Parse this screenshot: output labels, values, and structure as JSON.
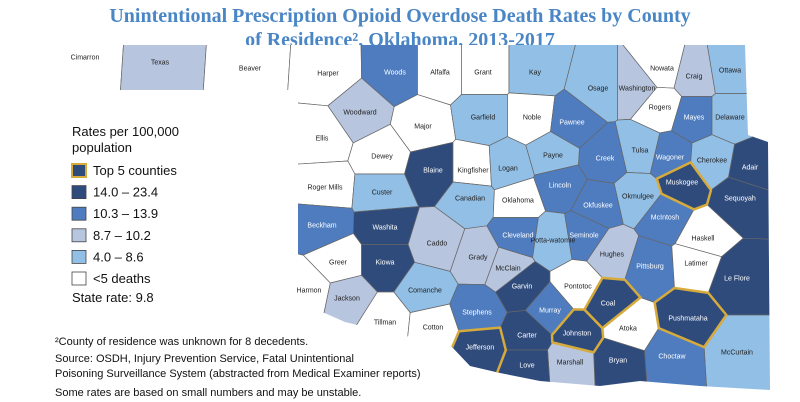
{
  "header": {
    "title": [
      "Unintentional Prescription Opioid Overdose Death Rates by County",
      "of Residence², Oklahoma, 2013-2017"
    ]
  },
  "legend": {
    "title": [
      "Rates per 100,000",
      "population"
    ],
    "items": [
      {
        "label": "Top 5 counties",
        "color": "#2f4b7c",
        "outline": "#d6ab3c"
      },
      {
        "label": "14.0 – 23.4",
        "color": "#2f4b7c"
      },
      {
        "label": "10.3 – 13.9",
        "color": "#4e7cbf"
      },
      {
        "label": "8.7 – 10.2",
        "color": "#b7c5df"
      },
      {
        "label": "4.0 – 8.6",
        "color": "#92bfe6"
      },
      {
        "label": "<5 deaths",
        "color": "#ffffff"
      }
    ]
  },
  "state_rate": "State rate: 9.8",
  "notes": [
    "²County of residence was unknown for 8 decedents.",
    "Source: OSDH, Injury Prevention Service, Fatal Unintentional",
    "Poisoning Surveillance System (abstracted from Medical Examiner reports)",
    "Some rates are based on small numbers and may be unstable."
  ],
  "counties": [
    {
      "name": "Cimarron",
      "class": 5
    },
    {
      "name": "Texas",
      "class": 3
    },
    {
      "name": "Beaver",
      "class": 5
    },
    {
      "name": "Harper",
      "class": 5
    },
    {
      "name": "Woods",
      "class": 2
    },
    {
      "name": "Alfalfa",
      "class": 5
    },
    {
      "name": "Grant",
      "class": 5
    },
    {
      "name": "Kay",
      "class": 4
    },
    {
      "name": "Osage",
      "class": 4
    },
    {
      "name": "Washington",
      "class": 3
    },
    {
      "name": "Nowata",
      "class": 5
    },
    {
      "name": "Craig",
      "class": 3
    },
    {
      "name": "Ottawa",
      "class": 4
    },
    {
      "name": "Rogers",
      "class": 5
    },
    {
      "name": "Mayes",
      "class": 2
    },
    {
      "name": "Delaware",
      "class": 4
    },
    {
      "name": "Woodward",
      "class": 3
    },
    {
      "name": "Ellis",
      "class": 5
    },
    {
      "name": "Major",
      "class": 5
    },
    {
      "name": "Garfield",
      "class": 4
    },
    {
      "name": "Noble",
      "class": 5
    },
    {
      "name": "Pawnee",
      "class": 2
    },
    {
      "name": "Tulsa",
      "class": 4
    },
    {
      "name": "Wagoner",
      "class": 2
    },
    {
      "name": "Cherokee",
      "class": 4
    },
    {
      "name": "Adair",
      "class": 1
    },
    {
      "name": "Dewey",
      "class": 5
    },
    {
      "name": "Blaine",
      "class": 1
    },
    {
      "name": "Kingfisher",
      "class": 5
    },
    {
      "name": "Logan",
      "class": 4
    },
    {
      "name": "Payne",
      "class": 4
    },
    {
      "name": "Creek",
      "class": 2
    },
    {
      "name": "Okmulgee",
      "class": 4
    },
    {
      "name": "Muskogee",
      "class": 0
    },
    {
      "name": "Sequoyah",
      "class": 1
    },
    {
      "name": "Roger Mills",
      "class": 5
    },
    {
      "name": "Custer",
      "class": 4
    },
    {
      "name": "Canadian",
      "class": 4
    },
    {
      "name": "Oklahoma",
      "class": 5
    },
    {
      "name": "Lincoln",
      "class": 2
    },
    {
      "name": "Okfuskee",
      "class": 2
    },
    {
      "name": "McIntosh",
      "class": 2
    },
    {
      "name": "Haskell",
      "class": 5
    },
    {
      "name": "Beckham",
      "class": 2
    },
    {
      "name": "Washita",
      "class": 1
    },
    {
      "name": "Caddo",
      "class": 3
    },
    {
      "name": "Grady",
      "class": 3
    },
    {
      "name": "McClain",
      "class": 3
    },
    {
      "name": "Cleveland",
      "class": 2
    },
    {
      "name": "Potta-watomie",
      "class": 4
    },
    {
      "name": "Seminole",
      "class": 2
    },
    {
      "name": "Hughes",
      "class": 3
    },
    {
      "name": "Pittsburg",
      "class": 2
    },
    {
      "name": "Latimer",
      "class": 5
    },
    {
      "name": "Le Flore",
      "class": 1
    },
    {
      "name": "Greer",
      "class": 5
    },
    {
      "name": "Kiowa",
      "class": 1
    },
    {
      "name": "Harmon",
      "class": 5
    },
    {
      "name": "Jackson",
      "class": 3
    },
    {
      "name": "Comanche",
      "class": 4
    },
    {
      "name": "Tillman",
      "class": 5
    },
    {
      "name": "Cotton",
      "class": 5
    },
    {
      "name": "Stephens",
      "class": 2
    },
    {
      "name": "Garvin",
      "class": 1
    },
    {
      "name": "Murray",
      "class": 2
    },
    {
      "name": "Pontotoc",
      "class": 5
    },
    {
      "name": "Coal",
      "class": 0
    },
    {
      "name": "Atoka",
      "class": 5
    },
    {
      "name": "Pushmataha",
      "class": 0
    },
    {
      "name": "McCurtain",
      "class": 4
    },
    {
      "name": "Choctaw",
      "class": 2
    },
    {
      "name": "Bryan",
      "class": 1
    },
    {
      "name": "Johnston",
      "class": 0
    },
    {
      "name": "Carter",
      "class": 1
    },
    {
      "name": "Marshall",
      "class": 3
    },
    {
      "name": "Love",
      "class": 1
    },
    {
      "name": "Jefferson",
      "class": 0
    }
  ]
}
